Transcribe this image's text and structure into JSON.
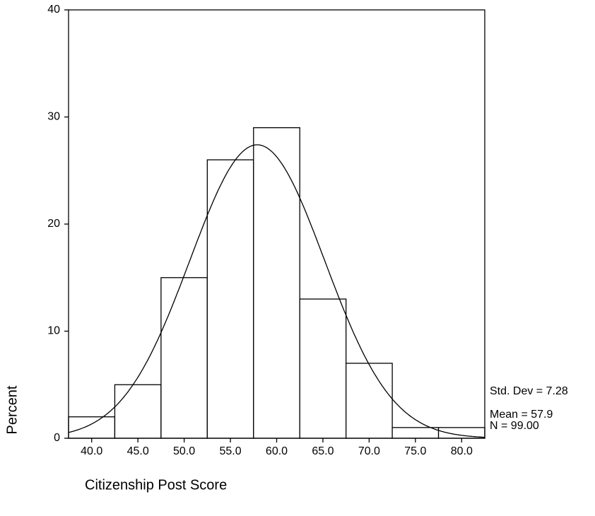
{
  "chart_data": {
    "type": "histogram",
    "xlabel": "Citizenship Post Score",
    "ylabel": "Percent",
    "bins": [
      37.5,
      42.5,
      47.5,
      52.5,
      57.5,
      62.5,
      67.5,
      72.5,
      77.5,
      82.5
    ],
    "values": [
      2,
      5,
      15,
      26,
      29,
      13,
      7,
      1,
      1
    ],
    "xlim": [
      37.5,
      82.5
    ],
    "xticks": [
      {
        "value": 40,
        "label": "40.0"
      },
      {
        "value": 45,
        "label": "45.0"
      },
      {
        "value": 50,
        "label": "50.0"
      },
      {
        "value": 55,
        "label": "55.0"
      },
      {
        "value": 60,
        "label": "60.0"
      },
      {
        "value": 65,
        "label": "65.0"
      },
      {
        "value": 70,
        "label": "70.0"
      },
      {
        "value": 75,
        "label": "75.0"
      },
      {
        "value": 80,
        "label": "80.0"
      }
    ],
    "ylim": [
      0,
      40
    ],
    "yticks": [
      0,
      10,
      20,
      30,
      40
    ],
    "color": "#ffffff",
    "stats": {
      "values": [
        7.28,
        57.9,
        99.0
      ],
      "value_labels": [
        "Std. Dev = 7.28",
        "Mean = 57.9",
        "N = 99.00"
      ]
    }
  }
}
